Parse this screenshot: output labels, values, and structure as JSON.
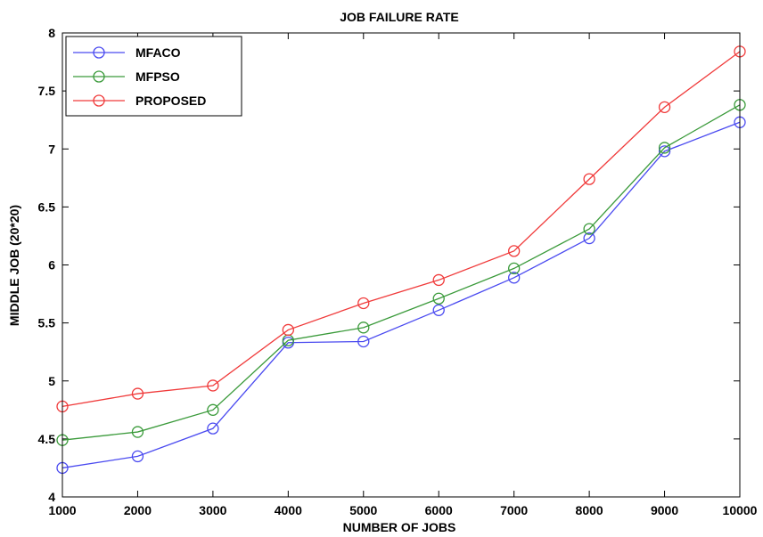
{
  "chart_data": {
    "type": "line",
    "title": "JOB FAILURE RATE",
    "xlabel": "NUMBER OF JOBS",
    "ylabel": "MIDDLE JOB (20*20)",
    "x": [
      1000,
      2000,
      3000,
      4000,
      5000,
      6000,
      7000,
      8000,
      9000,
      10000
    ],
    "xlim": [
      1000,
      10000
    ],
    "ylim": [
      4,
      8
    ],
    "xticks": [
      1000,
      2000,
      3000,
      4000,
      5000,
      6000,
      7000,
      8000,
      9000,
      10000
    ],
    "yticks": [
      4,
      4.5,
      5,
      5.5,
      6,
      6.5,
      7,
      7.5,
      8
    ],
    "grid": false,
    "legend_position": "top-left",
    "marker": "open-circle",
    "series": [
      {
        "name": "MFACO",
        "color": "#4a4af0",
        "values": [
          4.25,
          4.35,
          4.59,
          5.33,
          5.34,
          5.61,
          5.89,
          6.23,
          6.98,
          7.23
        ]
      },
      {
        "name": "MFPSO",
        "color": "#3a9a3a",
        "values": [
          4.49,
          4.56,
          4.75,
          5.35,
          5.46,
          5.71,
          5.97,
          6.31,
          7.01,
          7.38
        ]
      },
      {
        "name": "PROPOSED",
        "color": "#f03a3a",
        "values": [
          4.78,
          4.89,
          4.96,
          5.44,
          5.67,
          5.87,
          6.12,
          6.74,
          7.36,
          7.84
        ]
      }
    ]
  }
}
